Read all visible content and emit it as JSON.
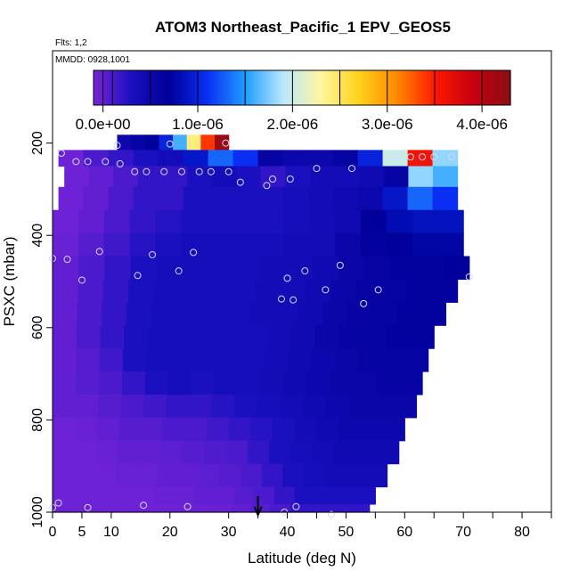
{
  "chart_data": {
    "type": "heatmap",
    "title": "ATOM3 Northeast_Pacific_1 EPV_GEOS5",
    "flights_label": "Flts: 1,2",
    "date_label": "MMDD: 0928,1001",
    "xlabel": "Latitude (deg N)",
    "ylabel": "PSXC (mbar)",
    "xlim": [
      0,
      85
    ],
    "ylim": [
      1000,
      0
    ],
    "xticks": [
      0,
      10,
      20,
      30,
      40,
      50,
      60,
      70,
      80
    ],
    "xtick_labels": [
      "0",
      "5",
      "10",
      "20",
      "30",
      "40",
      "50",
      "60",
      "70",
      "80"
    ],
    "xtick_label_values": [
      0,
      5,
      10,
      20,
      30,
      40,
      50,
      60,
      70,
      80
    ],
    "minor_xticks": [
      5,
      35,
      45,
      55,
      65,
      75,
      85
    ],
    "yticks": [
      200,
      400,
      600,
      800,
      1000
    ],
    "ytick_labels": [
      "200",
      "400",
      "600",
      "800",
      "1000"
    ],
    "colorbar": {
      "range": [
        -1e-07,
        4.3e-06
      ],
      "tick_values": [
        0,
        1e-06,
        2e-06,
        3e-06,
        4e-06
      ],
      "tick_labels": [
        "0.0e+00",
        "1.0e-06",
        "2.0e-06",
        "3.0e-06",
        "4.0e-06"
      ],
      "boundaries": [
        -1e-07,
        0,
        1e-07,
        5e-07,
        1e-06,
        1.5e-06,
        2e-06,
        2.5e-06,
        3e-06,
        3.5e-06,
        4e-06,
        4.3e-06
      ],
      "colors": [
        "#7a24d8",
        "#1a10c0",
        "#00009a",
        "#0a2ff2",
        "#1f9cff",
        "#b8e8ff",
        "#fff6a0",
        "#ffd21a",
        "#ff8a00",
        "#ff1a00",
        "#c80010",
        "#8a0f14"
      ]
    },
    "profile": [
      {
        "p": 200,
        "lat_start": 11,
        "lat_end": 30,
        "values": [
          5e-07,
          6e-07,
          7e-07,
          1e-06,
          1.6e-06,
          2.4e-06,
          3.4e-06,
          4.2e-06
        ]
      },
      {
        "p": 230,
        "lat_start": 1,
        "lat_end": 69,
        "values": [
          -5e-08,
          1e-07,
          2e-07,
          3e-07,
          4e-07,
          9e-07,
          1.3e-06,
          1.1e-06,
          6e-07,
          5e-07,
          5e-07,
          6e-07,
          1e-06,
          2e-06,
          3.6e-06,
          1.8e-06
        ]
      },
      {
        "p": 270,
        "lat_start": 2,
        "lat_end": 69,
        "values": [
          -5e-08,
          0,
          1e-07,
          2e-07,
          2e-07,
          3e-07,
          4e-07,
          3e-07,
          2e-07,
          3e-07,
          4e-07,
          4e-07,
          4.5e-07,
          6e-07,
          1.8e-06,
          1.6e-06
        ]
      },
      {
        "p": 320,
        "lat_start": 1,
        "lat_end": 69,
        "values": [
          -5e-08,
          0,
          1e-07,
          2e-07,
          2e-07,
          3e-07,
          3e-07,
          3e-07,
          3e-07,
          3.5e-07,
          4e-07,
          4.5e-07,
          5e-07,
          9e-07,
          1.3e-06,
          1.1e-06
        ]
      },
      {
        "p": 370,
        "lat_start": 0,
        "lat_end": 70,
        "values": [
          -5e-08,
          0,
          1e-07,
          2e-07,
          2.5e-07,
          3e-07,
          3e-07,
          3e-07,
          3e-07,
          3.5e-07,
          4e-07,
          4.5e-07,
          7e-07,
          8e-07,
          8.5e-07,
          8.5e-07
        ]
      },
      {
        "p": 420,
        "lat_start": 0,
        "lat_end": 70,
        "values": [
          -3e-08,
          5e-08,
          1.5e-07,
          2.5e-07,
          3e-07,
          3.5e-07,
          3.5e-07,
          3.5e-07,
          3.5e-07,
          4e-07,
          4e-07,
          5.5e-07,
          6.5e-07,
          7e-07,
          7.5e-07,
          7.5e-07
        ]
      },
      {
        "p": 470,
        "lat_start": 0,
        "lat_end": 71,
        "values": [
          0,
          1e-07,
          2e-07,
          3e-07,
          3.5e-07,
          3.5e-07,
          3.5e-07,
          3.5e-07,
          4e-07,
          4e-07,
          4.5e-07,
          5.5e-07,
          6e-07,
          6.5e-07,
          6.5e-07,
          7e-07
        ]
      },
      {
        "p": 520,
        "lat_start": 0,
        "lat_end": 69,
        "values": [
          0,
          1e-07,
          2e-07,
          3e-07,
          3.5e-07,
          3.5e-07,
          3.5e-07,
          3.5e-07,
          4e-07,
          4e-07,
          4.5e-07,
          5.5e-07,
          6e-07,
          6e-07,
          6.5e-07,
          6.5e-07
        ]
      },
      {
        "p": 570,
        "lat_start": 0,
        "lat_end": 67,
        "values": [
          0,
          1e-07,
          2e-07,
          3e-07,
          3.5e-07,
          3.5e-07,
          3.5e-07,
          3.5e-07,
          4e-07,
          4e-07,
          4.5e-07,
          5.5e-07,
          6e-07,
          6e-07,
          6.5e-07,
          6.5e-07
        ]
      },
      {
        "p": 620,
        "lat_start": 0,
        "lat_end": 65,
        "values": [
          0,
          1e-07,
          2e-07,
          3e-07,
          3.5e-07,
          3.5e-07,
          3.5e-07,
          3.5e-07,
          3.5e-07,
          4e-07,
          4.5e-07,
          5.5e-07,
          6e-07,
          6e-07,
          6.5e-07,
          6.5e-07
        ]
      },
      {
        "p": 670,
        "lat_start": 0,
        "lat_end": 64,
        "values": [
          0,
          5e-08,
          1.5e-07,
          3e-07,
          3.5e-07,
          3.5e-07,
          3.5e-07,
          3.5e-07,
          3.5e-07,
          4e-07,
          4.5e-07,
          5e-07,
          5.5e-07,
          6e-07,
          6e-07,
          6e-07
        ]
      },
      {
        "p": 720,
        "lat_start": 0,
        "lat_end": 63,
        "values": [
          0,
          5e-08,
          1e-07,
          2e-07,
          3e-07,
          3.5e-07,
          3e-07,
          3.5e-07,
          3.5e-07,
          4e-07,
          4.5e-07,
          5e-07,
          5.5e-07,
          5.5e-07,
          6e-07,
          6e-07
        ]
      },
      {
        "p": 770,
        "lat_start": 0,
        "lat_end": 62,
        "values": [
          0,
          0,
          5e-08,
          1e-07,
          1.5e-07,
          2e-07,
          2e-07,
          2.5e-07,
          3e-07,
          3.5e-07,
          4e-07,
          4.5e-07,
          5e-07,
          5.5e-07,
          5.5e-07,
          5.5e-07
        ]
      },
      {
        "p": 820,
        "lat_start": 0,
        "lat_end": 60,
        "values": [
          -5e-08,
          -3e-08,
          0,
          5e-08,
          5e-08,
          1e-07,
          1e-07,
          1.5e-07,
          2e-07,
          2.5e-07,
          3e-07,
          4e-07,
          4.5e-07,
          5e-07,
          5e-07,
          5e-07
        ]
      },
      {
        "p": 870,
        "lat_start": 0,
        "lat_end": 59,
        "values": [
          -5e-08,
          -5e-08,
          -3e-08,
          0,
          0,
          3e-08,
          5e-08,
          8e-08,
          1e-07,
          2e-07,
          3e-07,
          3.5e-07,
          4e-07,
          4.5e-07,
          4.5e-07,
          4.5e-07
        ]
      },
      {
        "p": 920,
        "lat_start": 0,
        "lat_end": 57,
        "values": [
          -5e-08,
          -5e-08,
          -5e-08,
          -3e-08,
          -3e-08,
          0,
          0,
          3e-08,
          5e-08,
          1e-07,
          2e-07,
          3e-07,
          3.5e-07,
          4e-07,
          4e-07,
          4e-07
        ]
      },
      {
        "p": 970,
        "lat_start": 0,
        "lat_end": 55,
        "values": [
          -5e-08,
          -5e-08,
          -5e-08,
          -5e-08,
          -5e-08,
          -3e-08,
          -3e-08,
          0,
          0,
          5e-08,
          1e-07,
          2e-07,
          3e-07,
          3e-07,
          3e-07,
          3e-07
        ]
      },
      {
        "p": 995,
        "lat_start": 0,
        "lat_end": 54,
        "values": [
          -5e-08,
          -5e-08,
          -5e-08,
          -5e-08,
          -5e-08,
          -5e-08,
          -5e-08,
          -3e-08,
          -3e-08,
          0,
          5e-08,
          1e-07,
          2e-07,
          2e-07,
          2e-07,
          2e-07
        ]
      }
    ],
    "observations": [
      {
        "lat": 11,
        "p": 205
      },
      {
        "lat": 20,
        "p": 202
      },
      {
        "lat": 29.5,
        "p": 200
      },
      {
        "lat": 1.5,
        "p": 222
      },
      {
        "lat": 4,
        "p": 240
      },
      {
        "lat": 6,
        "p": 240
      },
      {
        "lat": 9,
        "p": 240
      },
      {
        "lat": 11.5,
        "p": 245
      },
      {
        "lat": 14,
        "p": 262
      },
      {
        "lat": 16,
        "p": 262
      },
      {
        "lat": 19,
        "p": 262
      },
      {
        "lat": 22,
        "p": 262
      },
      {
        "lat": 25,
        "p": 262
      },
      {
        "lat": 27,
        "p": 262
      },
      {
        "lat": 30,
        "p": 262
      },
      {
        "lat": 32,
        "p": 285
      },
      {
        "lat": 36.5,
        "p": 292
      },
      {
        "lat": 37.5,
        "p": 278
      },
      {
        "lat": 40.5,
        "p": 278
      },
      {
        "lat": 45,
        "p": 255
      },
      {
        "lat": 51,
        "p": 255
      },
      {
        "lat": 58.5,
        "p": 230
      },
      {
        "lat": 61,
        "p": 230
      },
      {
        "lat": 63,
        "p": 230
      },
      {
        "lat": 65,
        "p": 230
      },
      {
        "lat": 68,
        "p": 230
      },
      {
        "lat": 0,
        "p": 450
      },
      {
        "lat": 2.5,
        "p": 452
      },
      {
        "lat": 5,
        "p": 497
      },
      {
        "lat": 8,
        "p": 435
      },
      {
        "lat": 14.5,
        "p": 487
      },
      {
        "lat": 17,
        "p": 442
      },
      {
        "lat": 21.5,
        "p": 477
      },
      {
        "lat": 24,
        "p": 437
      },
      {
        "lat": 39,
        "p": 538
      },
      {
        "lat": 40,
        "p": 493
      },
      {
        "lat": 41,
        "p": 540
      },
      {
        "lat": 43,
        "p": 477
      },
      {
        "lat": 46.5,
        "p": 518
      },
      {
        "lat": 49,
        "p": 465
      },
      {
        "lat": 53,
        "p": 548
      },
      {
        "lat": 55.5,
        "p": 518
      },
      {
        "lat": 71,
        "p": 490
      },
      {
        "lat": 1,
        "p": 980
      },
      {
        "lat": 0,
        "p": 990
      },
      {
        "lat": 6,
        "p": 990
      },
      {
        "lat": 15.5,
        "p": 985
      },
      {
        "lat": 23,
        "p": 988
      },
      {
        "lat": 39.5,
        "p": 1000
      },
      {
        "lat": 41.5,
        "p": 988
      },
      {
        "lat": 47.5,
        "p": 1005
      }
    ],
    "marker": {
      "lat": 35,
      "p": 1000
    }
  }
}
